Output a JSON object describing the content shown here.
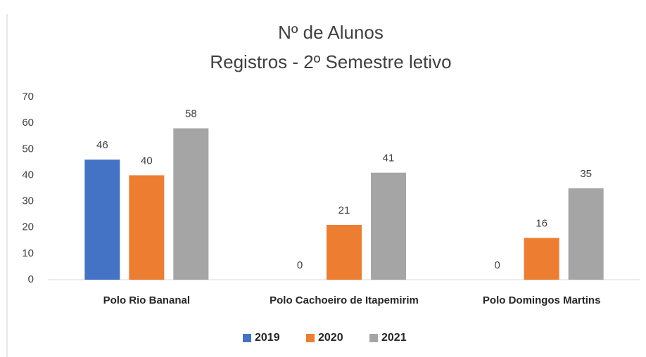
{
  "chart_data": {
    "type": "bar",
    "title": "Nº de Alunos",
    "subtitle": "Registros - 2º Semestre letivo",
    "categories": [
      "Polo Rio Bananal",
      "Polo Cachoeiro de Itapemirim",
      "Polo Domingos Martins"
    ],
    "series": [
      {
        "name": "2019",
        "color": "#4472c4",
        "values": [
          46,
          0,
          0
        ]
      },
      {
        "name": "2020",
        "color": "#ed7d31",
        "values": [
          40,
          21,
          16
        ]
      },
      {
        "name": "2021",
        "color": "#a5a5a5",
        "values": [
          58,
          41,
          35
        ]
      }
    ],
    "ylim": [
      0,
      70
    ],
    "yticks": [
      0,
      10,
      20,
      30,
      40,
      50,
      60,
      70
    ],
    "grid": false,
    "legend": "bottom",
    "data_labels": true
  }
}
